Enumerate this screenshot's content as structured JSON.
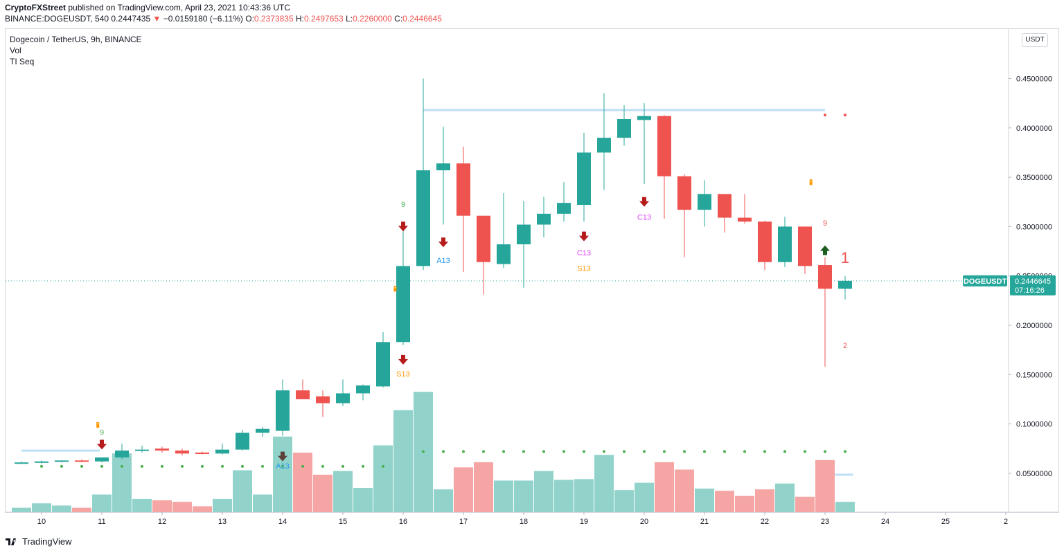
{
  "header": {
    "publisher": "CryptoFXStreet",
    "published_text": " published on TradingView.com, April 23, 2021 10:43:36 UTC",
    "symbol_line": "BINANCE:DOGEUSDT, 540",
    "last": "0.2447435",
    "change": "−0.0159180 (−6.11%)",
    "o_label": "O:",
    "o_value": "0.2373835",
    "h_label": "H:",
    "h_value": "0.2497653",
    "l_label": "L:",
    "l_value": "0.2260000",
    "c_label": "C:",
    "c_value": "0.2446645"
  },
  "legend": {
    "title": "Dogecoin / TetherUS, 9h, BINANCE",
    "vol": "Vol",
    "indicator": "TI Seq"
  },
  "price_axis": {
    "unit_button": "USDT",
    "current_symbol": "DOGEUSDT",
    "current_price": "0.2446645",
    "countdown": "07:16:26"
  },
  "footer": {
    "brand": "TradingView"
  },
  "colors": {
    "up": "#26a69a",
    "down": "#ef5350",
    "vol_up": "#91d3cb",
    "vol_down": "#f5a5a3",
    "level": "#bcdff5",
    "dot": "#4caf50"
  },
  "chart_data": {
    "type": "candlestick",
    "title": "Dogecoin / TetherUS, 9h, BINANCE",
    "ylim": [
      0,
      0.47
    ],
    "y_ticks": [
      "0.4500000",
      "0.4000000",
      "0.3500000",
      "0.3000000",
      "0.2500000",
      "0.2000000",
      "0.1500000",
      "0.1000000",
      "0.0500000"
    ],
    "x_ticks": [
      "10",
      "11",
      "12",
      "13",
      "14",
      "15",
      "16",
      "17",
      "18",
      "19",
      "20",
      "21",
      "22",
      "23",
      "24",
      "25",
      "2"
    ],
    "candles": [
      {
        "o": 0.061,
        "h": 0.062,
        "l": 0.06,
        "c": 0.061,
        "v": 6
      },
      {
        "o": 0.061,
        "h": 0.063,
        "l": 0.06,
        "c": 0.062,
        "v": 12
      },
      {
        "o": 0.062,
        "h": 0.063,
        "l": 0.061,
        "c": 0.063,
        "v": 9
      },
      {
        "o": 0.063,
        "h": 0.064,
        "l": 0.061,
        "c": 0.062,
        "v": 6
      },
      {
        "o": 0.062,
        "h": 0.066,
        "l": 0.061,
        "c": 0.066,
        "v": 24
      },
      {
        "o": 0.066,
        "h": 0.08,
        "l": 0.064,
        "c": 0.073,
        "v": 80
      },
      {
        "o": 0.073,
        "h": 0.078,
        "l": 0.071,
        "c": 0.074,
        "v": 18
      },
      {
        "o": 0.075,
        "h": 0.077,
        "l": 0.071,
        "c": 0.073,
        "v": 16
      },
      {
        "o": 0.073,
        "h": 0.075,
        "l": 0.068,
        "c": 0.07,
        "v": 14
      },
      {
        "o": 0.071,
        "h": 0.072,
        "l": 0.069,
        "c": 0.07,
        "v": 8
      },
      {
        "o": 0.07,
        "h": 0.08,
        "l": 0.069,
        "c": 0.074,
        "v": 18
      },
      {
        "o": 0.074,
        "h": 0.094,
        "l": 0.073,
        "c": 0.091,
        "v": 57
      },
      {
        "o": 0.091,
        "h": 0.097,
        "l": 0.087,
        "c": 0.095,
        "v": 24
      },
      {
        "o": 0.093,
        "h": 0.145,
        "l": 0.088,
        "c": 0.134,
        "v": 103
      },
      {
        "o": 0.134,
        "h": 0.145,
        "l": 0.125,
        "c": 0.125,
        "v": 81
      },
      {
        "o": 0.128,
        "h": 0.134,
        "l": 0.107,
        "c": 0.121,
        "v": 51
      },
      {
        "o": 0.121,
        "h": 0.145,
        "l": 0.118,
        "c": 0.131,
        "v": 56
      },
      {
        "o": 0.131,
        "h": 0.14,
        "l": 0.124,
        "c": 0.139,
        "v": 33
      },
      {
        "o": 0.138,
        "h": 0.193,
        "l": 0.137,
        "c": 0.183,
        "v": 91
      },
      {
        "o": 0.183,
        "h": 0.3,
        "l": 0.18,
        "c": 0.26,
        "v": 139
      },
      {
        "o": 0.26,
        "h": 0.45,
        "l": 0.256,
        "c": 0.357,
        "v": 164
      },
      {
        "o": 0.357,
        "h": 0.401,
        "l": 0.302,
        "c": 0.364,
        "v": 31
      },
      {
        "o": 0.364,
        "h": 0.381,
        "l": 0.254,
        "c": 0.311,
        "v": 61
      },
      {
        "o": 0.311,
        "h": 0.311,
        "l": 0.231,
        "c": 0.264,
        "v": 68
      },
      {
        "o": 0.262,
        "h": 0.334,
        "l": 0.258,
        "c": 0.282,
        "v": 43
      },
      {
        "o": 0.282,
        "h": 0.326,
        "l": 0.238,
        "c": 0.302,
        "v": 43
      },
      {
        "o": 0.302,
        "h": 0.33,
        "l": 0.289,
        "c": 0.313,
        "v": 56
      },
      {
        "o": 0.313,
        "h": 0.345,
        "l": 0.305,
        "c": 0.324,
        "v": 44
      },
      {
        "o": 0.322,
        "h": 0.395,
        "l": 0.305,
        "c": 0.375,
        "v": 45
      },
      {
        "o": 0.375,
        "h": 0.435,
        "l": 0.337,
        "c": 0.39,
        "v": 78
      },
      {
        "o": 0.39,
        "h": 0.423,
        "l": 0.382,
        "c": 0.409,
        "v": 30
      },
      {
        "o": 0.408,
        "h": 0.425,
        "l": 0.343,
        "c": 0.412,
        "v": 40
      },
      {
        "o": 0.412,
        "h": 0.413,
        "l": 0.308,
        "c": 0.351,
        "v": 68
      },
      {
        "o": 0.351,
        "h": 0.353,
        "l": 0.269,
        "c": 0.317,
        "v": 58
      },
      {
        "o": 0.317,
        "h": 0.347,
        "l": 0.3,
        "c": 0.333,
        "v": 32
      },
      {
        "o": 0.333,
        "h": 0.333,
        "l": 0.294,
        "c": 0.309,
        "v": 29
      },
      {
        "o": 0.309,
        "h": 0.333,
        "l": 0.303,
        "c": 0.305,
        "v": 22
      },
      {
        "o": 0.305,
        "h": 0.306,
        "l": 0.256,
        "c": 0.264,
        "v": 31
      },
      {
        "o": 0.264,
        "h": 0.31,
        "l": 0.259,
        "c": 0.3,
        "v": 39
      },
      {
        "o": 0.3,
        "h": 0.3,
        "l": 0.252,
        "c": 0.26,
        "v": 21
      },
      {
        "o": 0.261,
        "h": 0.269,
        "l": 0.158,
        "c": 0.237,
        "v": 71
      },
      {
        "o": 0.237,
        "h": 0.25,
        "l": 0.226,
        "c": 0.245,
        "v": 14
      }
    ],
    "levels": [
      {
        "y": 0.418,
        "from": 20,
        "to": 40
      },
      {
        "y": 0.073,
        "from": 0,
        "to": 3.9
      },
      {
        "y": 0.0485,
        "from": 40.5,
        "to": 41.4
      }
    ],
    "support_dots_low": {
      "y": 0.057,
      "from": 1,
      "to": 18
    },
    "support_dots_high": {
      "y": 0.072,
      "from": 20,
      "to": 41
    },
    "resist_dots": {
      "y": 0.413,
      "from": 40,
      "to": 41
    },
    "annotations": [
      {
        "t": "9",
        "i": 4,
        "y": 0.089,
        "c": "#4caf50"
      },
      {
        "t": "9",
        "i": 19,
        "y": 0.32,
        "c": "#4caf50"
      },
      {
        "t": "A13",
        "i": 13,
        "y": 0.055,
        "c": "#2196f3"
      },
      {
        "t": "A13",
        "i": 21,
        "y": 0.263,
        "c": "#2196f3"
      },
      {
        "t": "S13",
        "i": 19,
        "y": 0.148,
        "c": "#ff9800"
      },
      {
        "t": "C13",
        "i": 28,
        "y": 0.271,
        "c": "#e040fb"
      },
      {
        "t": "S13",
        "i": 28,
        "y": 0.255,
        "c": "#ff9800"
      },
      {
        "t": "C13",
        "i": 31,
        "y": 0.307,
        "c": "#e040fb"
      },
      {
        "t": "9",
        "i": 40,
        "y": 0.301,
        "c": "#ef5350"
      },
      {
        "t": "1",
        "i": 41,
        "y": 0.263,
        "c": "#ef5350"
      },
      {
        "t": "2",
        "i": 41,
        "y": 0.177,
        "c": "#ef5350"
      }
    ],
    "sell_arrows": [
      {
        "i": 4,
        "y": 0.079,
        "c": "#b71c1c"
      },
      {
        "i": 13,
        "y": 0.067,
        "c": "#5d4037"
      },
      {
        "i": 19,
        "y": 0.165,
        "c": "#b71c1c"
      },
      {
        "i": 19,
        "y": 0.3,
        "c": "#b71c1c"
      },
      {
        "i": 21,
        "y": 0.284,
        "c": "#b71c1c"
      },
      {
        "i": 28,
        "y": 0.29,
        "c": "#b71c1c"
      },
      {
        "i": 31,
        "y": 0.325,
        "c": "#b71c1c"
      }
    ],
    "buy_arrows": [
      {
        "i": 40,
        "y": 0.276,
        "c": "#1b5e20"
      }
    ],
    "warning_icons": [
      {
        "i": 3.8,
        "y": 0.099
      },
      {
        "i": 18.6,
        "y": 0.237
      },
      {
        "i": 39.3,
        "y": 0.345
      }
    ]
  }
}
